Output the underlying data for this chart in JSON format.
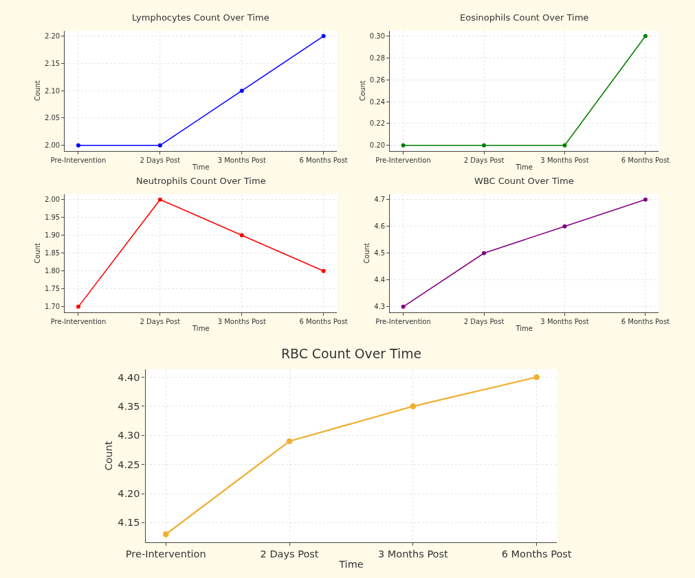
{
  "chart_data": [
    {
      "type": "line",
      "title": "Lymphocytes Count Over Time",
      "xlabel": "Time",
      "ylabel": "Count",
      "categories": [
        "Pre-Intervention",
        "2 Days Post",
        "3 Months Post",
        "6 Months Post"
      ],
      "series": [
        {
          "color": "#0000ff",
          "values": [
            2.0,
            2.0,
            2.1,
            2.2
          ]
        }
      ],
      "ylim": [
        1.99,
        2.21
      ],
      "yticks": [
        {
          "value": 2.0,
          "label": "2.00"
        },
        {
          "value": 2.05,
          "label": "2.05"
        },
        {
          "value": 2.1,
          "label": "2.10"
        },
        {
          "value": 2.15,
          "label": "2.15"
        },
        {
          "value": 2.2,
          "label": "2.20"
        }
      ],
      "grid": true,
      "marker": "circle"
    },
    {
      "type": "line",
      "title": "Eosinophils Count Over Time",
      "xlabel": "Time",
      "ylabel": "Count",
      "categories": [
        "Pre-Intervention",
        "2 Days Post",
        "3 Months Post",
        "6 Months Post"
      ],
      "series": [
        {
          "color": "#008000",
          "values": [
            0.2,
            0.2,
            0.2,
            0.3
          ]
        }
      ],
      "ylim": [
        0.195,
        0.305
      ],
      "yticks": [
        {
          "value": 0.2,
          "label": "0.20"
        },
        {
          "value": 0.22,
          "label": "0.22"
        },
        {
          "value": 0.24,
          "label": "0.24"
        },
        {
          "value": 0.26,
          "label": "0.26"
        },
        {
          "value": 0.28,
          "label": "0.28"
        },
        {
          "value": 0.3,
          "label": "0.30"
        }
      ],
      "grid": true,
      "marker": "circle"
    },
    {
      "type": "line",
      "title": "Neutrophils Count Over Time",
      "xlabel": "Time",
      "ylabel": "Count",
      "categories": [
        "Pre-Intervention",
        "2 Days Post",
        "3 Months Post",
        "6 Months Post"
      ],
      "series": [
        {
          "color": "#ff0000",
          "values": [
            1.7,
            2.0,
            1.9,
            1.8
          ]
        }
      ],
      "ylim": [
        1.685,
        2.015
      ],
      "yticks": [
        {
          "value": 1.7,
          "label": "1.70"
        },
        {
          "value": 1.75,
          "label": "1.75"
        },
        {
          "value": 1.8,
          "label": "1.80"
        },
        {
          "value": 1.85,
          "label": "1.85"
        },
        {
          "value": 1.9,
          "label": "1.90"
        },
        {
          "value": 1.95,
          "label": "1.95"
        },
        {
          "value": 2.0,
          "label": "2.00"
        }
      ],
      "grid": true,
      "marker": "circle"
    },
    {
      "type": "line",
      "title": "WBC Count Over Time",
      "xlabel": "Time",
      "ylabel": "Count",
      "categories": [
        "Pre-Intervention",
        "2 Days Post",
        "3 Months Post",
        "6 Months Post"
      ],
      "series": [
        {
          "color": "#800080",
          "values": [
            4.3,
            4.5,
            4.6,
            4.7
          ]
        }
      ],
      "ylim": [
        4.28,
        4.72
      ],
      "yticks": [
        4.3,
        4.4,
        4.5,
        4.6,
        4.7
      ],
      "grid": true,
      "marker": "circle"
    },
    {
      "type": "line",
      "title": "RBC Count Over Time",
      "xlabel": "Time",
      "ylabel": "Count",
      "categories": [
        "Pre-Intervention",
        "2 Days Post",
        "3 Months Post",
        "6 Months Post"
      ],
      "series": [
        {
          "color": "#f0b030",
          "values": [
            4.13,
            4.29,
            4.35,
            4.4
          ]
        }
      ],
      "ylim": [
        4.1165,
        4.4135
      ],
      "yticks": [
        {
          "value": 4.15,
          "label": "4.15"
        },
        {
          "value": 4.2,
          "label": "4.20"
        },
        {
          "value": 4.25,
          "label": "4.25"
        },
        {
          "value": 4.3,
          "label": "4.30"
        },
        {
          "value": 4.35,
          "label": "4.35"
        },
        {
          "value": 4.4,
          "label": "4.40"
        }
      ],
      "grid": true,
      "marker": "circle"
    }
  ]
}
